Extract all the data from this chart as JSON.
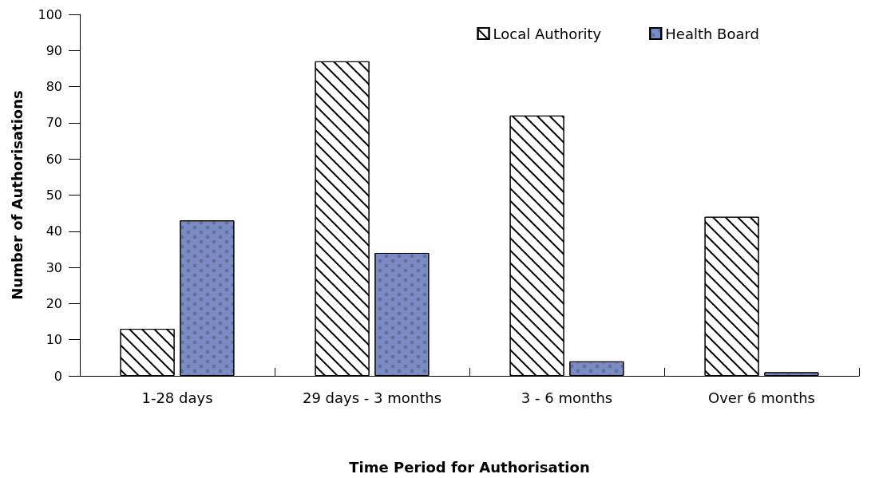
{
  "chart_data": {
    "type": "bar",
    "xlabel": "Time Period for Authorisation",
    "ylabel": "Number of Authorisations",
    "categories": [
      "1-28 days",
      "29 days - 3 months",
      "3 - 6 months",
      "Over 6 months"
    ],
    "series": [
      {
        "name": "Local Authority",
        "color": "#ffffff",
        "values": [
          13,
          87,
          72,
          44
        ]
      },
      {
        "name": "Health Board",
        "color": "#7b8cc4",
        "values": [
          43,
          34,
          4,
          1
        ]
      }
    ],
    "ylim": [
      0,
      100
    ],
    "yticks": [
      0,
      10,
      20,
      30,
      40,
      50,
      60,
      70,
      80,
      90,
      100
    ],
    "grid": false,
    "legend": "top right"
  }
}
